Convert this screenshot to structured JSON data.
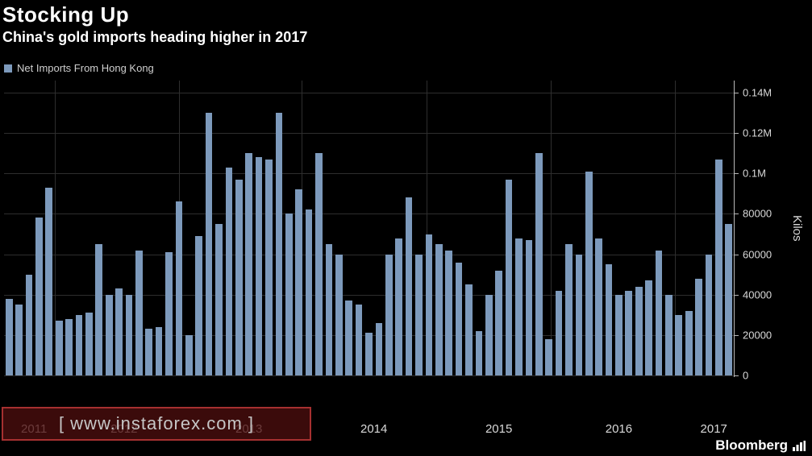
{
  "header": {
    "title": "Stocking Up",
    "subtitle": "China's gold imports heading higher in 2017",
    "legend": "Net Imports From Hong Kong"
  },
  "watermark": {
    "text": "[ www.instaforex.com ]"
  },
  "brand": {
    "name": "Bloomberg"
  },
  "colors": {
    "background": "#000000",
    "bar": "#7d9abc",
    "grid": "#2e2e2e",
    "axis": "#b9b9b9",
    "text": "#d9d9d9",
    "watermark_bg": "#4c0e0e",
    "watermark_border": "#a63030"
  },
  "chart_data": {
    "type": "bar",
    "title": "Stocking Up",
    "subtitle": "China's gold imports heading higher in 2017",
    "xlabel": "",
    "ylabel": "Kilos",
    "ylim": [
      0,
      146000
    ],
    "grid": true,
    "legend_position": "top-left",
    "axis_side": "right",
    "series": [
      {
        "name": "Net Imports From Hong Kong",
        "values": [
          38000,
          35000,
          50000,
          78000,
          93000,
          27000,
          28000,
          30000,
          31000,
          65000,
          40000,
          43000,
          40000,
          62000,
          23000,
          24000,
          61000,
          86000,
          20000,
          69000,
          130000,
          75000,
          103000,
          97000,
          110000,
          108000,
          107000,
          130000,
          80000,
          92000,
          82000,
          110000,
          65000,
          60000,
          37000,
          35000,
          21000,
          26000,
          60000,
          68000,
          88000,
          60000,
          70000,
          65000,
          62000,
          56000,
          45000,
          22000,
          40000,
          52000,
          97000,
          68000,
          67000,
          110000,
          18000,
          42000,
          65000,
          60000,
          101000,
          68000,
          55000,
          40000,
          42000,
          44000,
          47000,
          62000,
          40000,
          30000,
          32000,
          48000,
          60000,
          107000,
          75000
        ]
      }
    ],
    "y_ticks": [
      {
        "value": 0,
        "label": "0"
      },
      {
        "value": 20000,
        "label": "20000"
      },
      {
        "value": 40000,
        "label": "40000"
      },
      {
        "value": 60000,
        "label": "60000"
      },
      {
        "value": 80000,
        "label": "80000"
      },
      {
        "value": 100000,
        "label": "0.1M"
      },
      {
        "value": 120000,
        "label": "0.12M"
      },
      {
        "value": 140000,
        "label": "0.14M"
      }
    ],
    "x_ticks": [
      {
        "label": "2011",
        "center_index": 2.5
      },
      {
        "label": "2012",
        "center_index": 11.5
      },
      {
        "label": "2013",
        "center_index": 24
      },
      {
        "label": "2014",
        "center_index": 36.5
      },
      {
        "label": "2015",
        "center_index": 49
      },
      {
        "label": "2016",
        "center_index": 61
      },
      {
        "label": "2017",
        "center_index": 70.5
      }
    ],
    "x_gridline_indices": [
      5.1,
      17.5,
      29.8,
      42.3,
      54.7,
      67.1
    ]
  }
}
